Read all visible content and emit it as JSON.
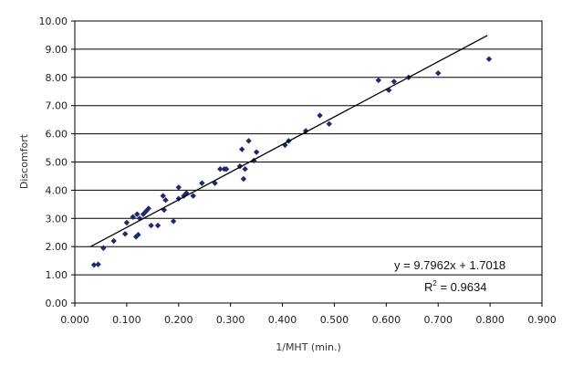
{
  "chart_data": {
    "type": "scatter",
    "title": "",
    "xlabel": "1/MHT (min.)",
    "ylabel": "Discomfort",
    "xlim": [
      0,
      0.9
    ],
    "ylim": [
      0,
      10
    ],
    "x_ticks": [
      "0.000",
      "0.100",
      "0.200",
      "0.300",
      "0.400",
      "0.500",
      "0.600",
      "0.700",
      "0.800",
      "0.900"
    ],
    "y_ticks": [
      "0.00",
      "1.00",
      "2.00",
      "3.00",
      "4.00",
      "5.00",
      "6.00",
      "7.00",
      "8.00",
      "9.00",
      "10.00"
    ],
    "grid": "horizontal",
    "colors": {
      "points": "#1f2a6b",
      "trendline": "#000000",
      "grid": "#000000"
    },
    "points": [
      [
        0.037,
        1.35
      ],
      [
        0.045,
        1.37
      ],
      [
        0.055,
        1.95
      ],
      [
        0.075,
        2.2
      ],
      [
        0.097,
        2.45
      ],
      [
        0.1,
        2.85
      ],
      [
        0.112,
        3.05
      ],
      [
        0.118,
        2.35
      ],
      [
        0.12,
        3.15
      ],
      [
        0.122,
        2.42
      ],
      [
        0.125,
        3.0
      ],
      [
        0.132,
        3.15
      ],
      [
        0.137,
        3.25
      ],
      [
        0.142,
        3.35
      ],
      [
        0.147,
        2.75
      ],
      [
        0.16,
        2.75
      ],
      [
        0.17,
        3.8
      ],
      [
        0.172,
        3.3
      ],
      [
        0.175,
        3.65
      ],
      [
        0.19,
        2.9
      ],
      [
        0.2,
        4.1
      ],
      [
        0.2,
        3.7
      ],
      [
        0.21,
        3.8
      ],
      [
        0.215,
        3.9
      ],
      [
        0.228,
        3.8
      ],
      [
        0.245,
        4.25
      ],
      [
        0.27,
        4.25
      ],
      [
        0.28,
        4.75
      ],
      [
        0.288,
        4.75
      ],
      [
        0.292,
        4.75
      ],
      [
        0.318,
        4.85
      ],
      [
        0.322,
        5.45
      ],
      [
        0.325,
        4.4
      ],
      [
        0.328,
        4.75
      ],
      [
        0.335,
        5.75
      ],
      [
        0.345,
        5.05
      ],
      [
        0.35,
        5.35
      ],
      [
        0.405,
        5.6
      ],
      [
        0.412,
        5.75
      ],
      [
        0.445,
        6.1
      ],
      [
        0.472,
        6.65
      ],
      [
        0.49,
        6.35
      ],
      [
        0.585,
        7.9
      ],
      [
        0.605,
        7.55
      ],
      [
        0.615,
        7.85
      ],
      [
        0.643,
        8.0
      ],
      [
        0.7,
        8.15
      ],
      [
        0.798,
        8.65
      ]
    ],
    "trendline": {
      "slope": 9.7962,
      "intercept": 1.7018,
      "x_range": [
        0.03,
        0.795
      ]
    },
    "equation": "y = 9.7962x + 1.7018",
    "r2_prefix": "R",
    "r2_sup": "2",
    "r2_value": " = 0.9634"
  }
}
